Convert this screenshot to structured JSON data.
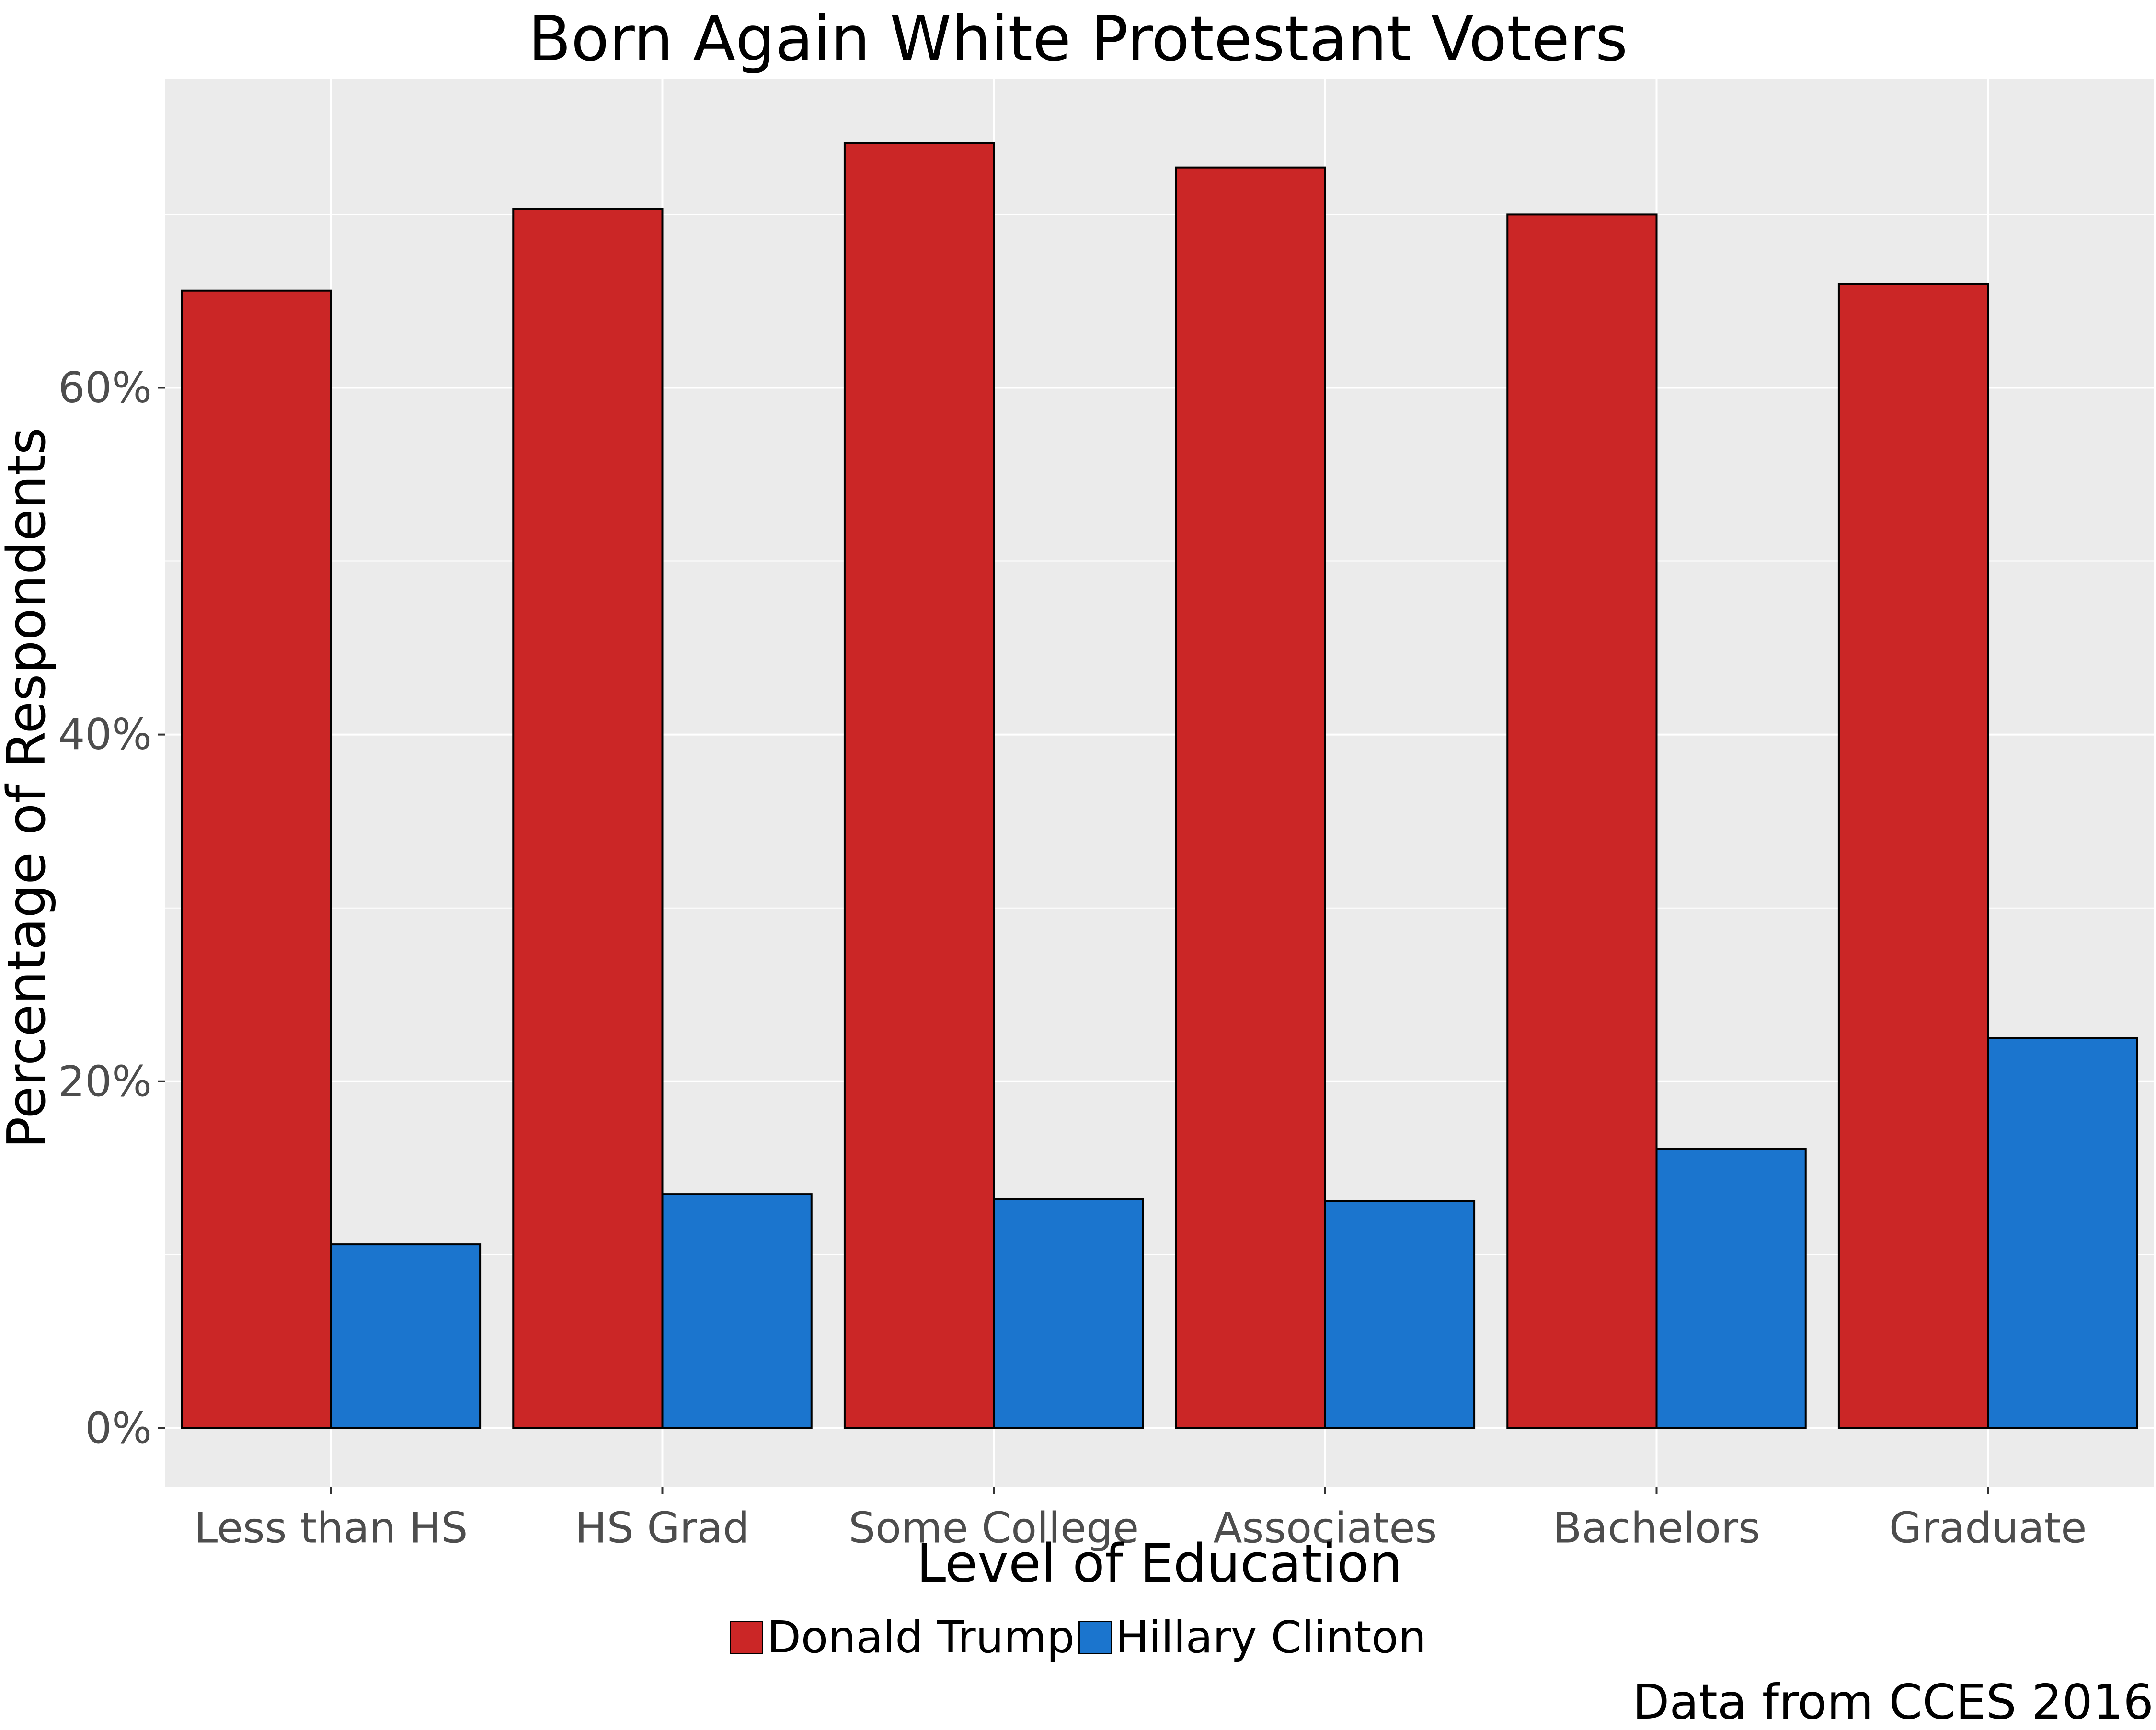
{
  "chart_data": {
    "type": "bar",
    "title": "Born Again White Protestant Voters",
    "xlabel": "Level of Education",
    "ylabel": "Percentage of Respondents",
    "categories": [
      "Less than HS",
      "HS Grad",
      "Some College",
      "Associates",
      "Bachelors",
      "Graduate"
    ],
    "series": [
      {
        "name": "Donald Trump",
        "color": "#CB2626",
        "values": [
          65.6,
          70.3,
          74.1,
          72.7,
          70.0,
          66.0
        ]
      },
      {
        "name": "Hillary Clinton",
        "color": "#1B75CE",
        "values": [
          10.6,
          13.5,
          13.2,
          13.1,
          16.1,
          22.5
        ]
      }
    ],
    "ylim": [
      -3.4,
      77.8
    ],
    "y_ticks": [
      0,
      20,
      40,
      60
    ],
    "y_tick_labels": [
      "0%",
      "20%",
      "40%",
      "60%"
    ],
    "grid": true,
    "background": "#EBEBEB",
    "legend_position": "bottom",
    "caption": "Data from CCES 2016"
  }
}
